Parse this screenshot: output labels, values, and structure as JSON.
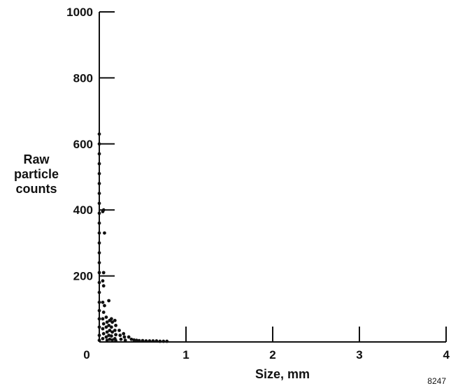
{
  "chart_data": {
    "type": "scatter",
    "title": "",
    "xlabel": "Size, mm",
    "ylabel_lines": [
      "Raw",
      "particle",
      "counts"
    ],
    "xlim": [
      0,
      4
    ],
    "ylim": [
      0,
      1000
    ],
    "x_ticks": [
      "0",
      "1",
      "2",
      "3",
      "4"
    ],
    "y_ticks": [
      "200",
      "400",
      "600",
      "800",
      "1000"
    ],
    "figure_number": "8247",
    "grid": false,
    "marker_color": "#111111",
    "series": [
      {
        "points": [
          [
            0.0,
            630
          ],
          [
            0.0,
            600
          ],
          [
            0.0,
            570
          ],
          [
            0.0,
            540
          ],
          [
            0.0,
            510
          ],
          [
            0.0,
            480
          ],
          [
            0.0,
            450
          ],
          [
            0.0,
            420
          ],
          [
            0.0,
            390
          ],
          [
            0.0,
            360
          ],
          [
            0.0,
            330
          ],
          [
            0.0,
            300
          ],
          [
            0.0,
            270
          ],
          [
            0.0,
            240
          ],
          [
            0.0,
            210
          ],
          [
            0.0,
            180
          ],
          [
            0.0,
            150
          ],
          [
            0.0,
            120
          ],
          [
            0.0,
            95
          ],
          [
            0.0,
            70
          ],
          [
            0.0,
            45
          ],
          [
            0.0,
            20
          ],
          [
            0.0,
            5
          ],
          [
            0.04,
            395
          ],
          [
            0.05,
            400
          ],
          [
            0.06,
            330
          ],
          [
            0.05,
            210
          ],
          [
            0.04,
            185
          ],
          [
            0.05,
            170
          ],
          [
            0.04,
            120
          ],
          [
            0.06,
            110
          ],
          [
            0.05,
            90
          ],
          [
            0.04,
            70
          ],
          [
            0.05,
            55
          ],
          [
            0.04,
            40
          ],
          [
            0.05,
            25
          ],
          [
            0.04,
            10
          ],
          [
            0.08,
            75
          ],
          [
            0.09,
            60
          ],
          [
            0.08,
            45
          ],
          [
            0.09,
            30
          ],
          [
            0.08,
            15
          ],
          [
            0.09,
            5
          ],
          [
            0.11,
            125
          ],
          [
            0.12,
            65
          ],
          [
            0.11,
            50
          ],
          [
            0.12,
            35
          ],
          [
            0.11,
            20
          ],
          [
            0.12,
            8
          ],
          [
            0.14,
            70
          ],
          [
            0.15,
            60
          ],
          [
            0.14,
            45
          ],
          [
            0.15,
            30
          ],
          [
            0.14,
            18
          ],
          [
            0.15,
            6
          ],
          [
            0.18,
            65
          ],
          [
            0.19,
            50
          ],
          [
            0.18,
            35
          ],
          [
            0.19,
            22
          ],
          [
            0.18,
            10
          ],
          [
            0.19,
            4
          ],
          [
            0.23,
            35
          ],
          [
            0.24,
            20
          ],
          [
            0.25,
            8
          ],
          [
            0.28,
            25
          ],
          [
            0.29,
            15
          ],
          [
            0.3,
            5
          ],
          [
            0.34,
            15
          ],
          [
            0.37,
            8
          ],
          [
            0.4,
            6
          ],
          [
            0.43,
            5
          ],
          [
            0.46,
            4
          ],
          [
            0.5,
            4
          ],
          [
            0.54,
            3
          ],
          [
            0.58,
            3
          ],
          [
            0.62,
            3
          ],
          [
            0.66,
            3
          ],
          [
            0.7,
            2
          ],
          [
            0.74,
            2
          ],
          [
            0.78,
            2
          ]
        ]
      }
    ]
  }
}
